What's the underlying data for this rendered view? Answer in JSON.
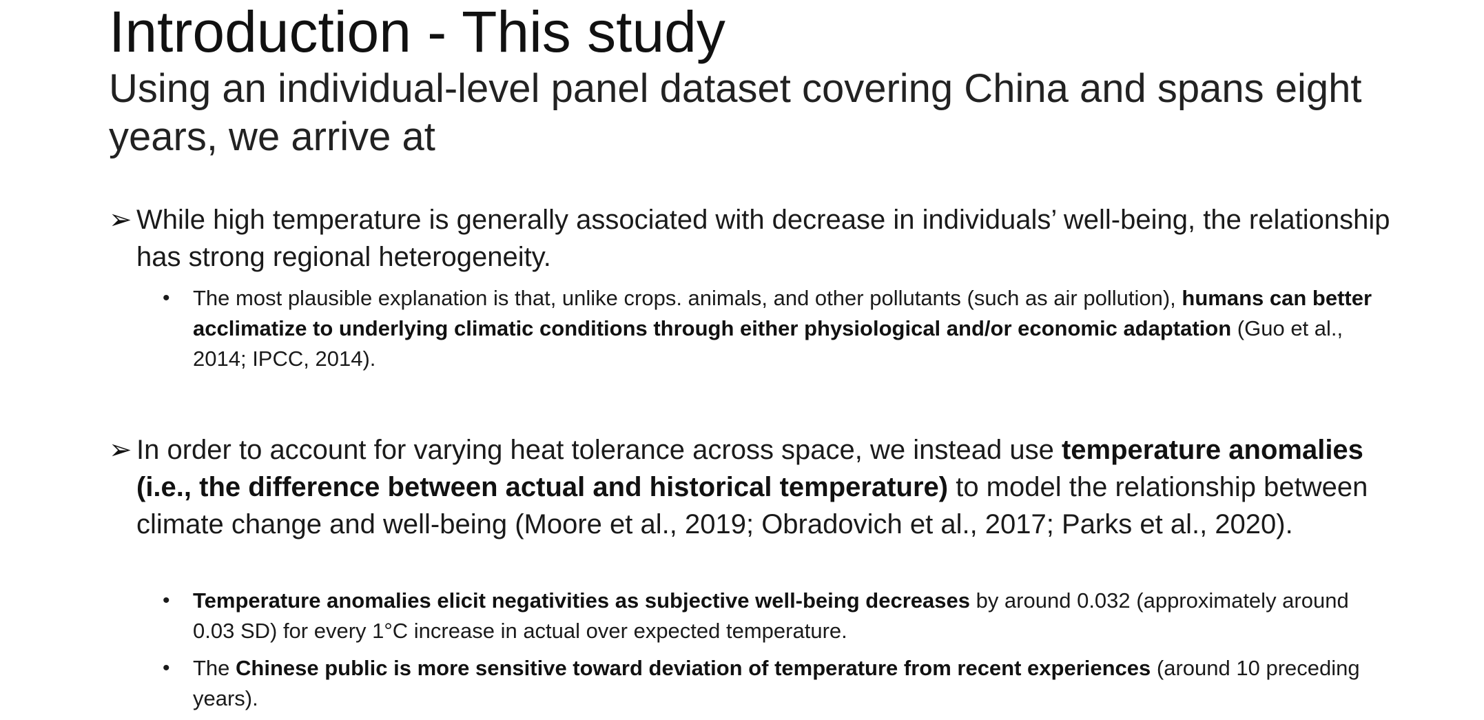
{
  "slide": {
    "title": "Introduction - This study",
    "subtitle": "Using an individual-level panel dataset covering China and spans eight years, we arrive at",
    "bullets": [
      {
        "runs": [
          "While high temperature is generally associated with decrease in individuals’ well-being, the relationship has strong regional heterogeneity."
        ],
        "sub": [
          {
            "pre": "The most plausible explanation is that, unlike crops. animals, and other pollutants (such as air pollution), ",
            "bold": "humans can better acclimatize to underlying climatic conditions through either physiological and/or economic adaptation",
            "post": " (Guo et al., 2014; IPCC, 2014)."
          }
        ]
      },
      {
        "pre": "In order to account for varying heat tolerance across space, we instead use ",
        "bold": "temperature anomalies (i.e., the difference between actual and historical temperature)",
        "post": " to model the relationship between climate change and well-being (Moore et al., 2019; Obradovich et al., 2017; Parks et al., 2020).",
        "sub": [
          {
            "pre": "",
            "bold": "Temperature anomalies elicit negativities as subjective well-being decreases",
            "post": " by around 0.032 (approximately around 0.03 SD) for every 1°C increase in actual over expected temperature."
          },
          {
            "pre": "The ",
            "bold": "Chinese public is more sensitive toward deviation of temperature from recent experiences",
            "post": " (around 10 preceding years)."
          }
        ]
      }
    ],
    "arrow_glyph": "➢",
    "dot_glyph": "•"
  }
}
